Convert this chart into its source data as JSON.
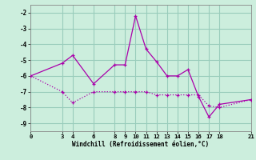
{
  "line1_x": [
    0,
    3,
    4,
    6,
    8,
    9,
    10,
    11,
    12,
    13,
    14,
    15,
    16,
    17,
    18,
    21
  ],
  "line1_y": [
    -6.0,
    -5.2,
    -4.7,
    -6.5,
    -5.3,
    -5.3,
    -2.2,
    -4.3,
    -5.1,
    -6.0,
    -6.0,
    -5.6,
    -7.3,
    -8.6,
    -7.8,
    -7.5
  ],
  "line2_x": [
    0,
    3,
    4,
    6,
    8,
    9,
    10,
    11,
    12,
    13,
    14,
    15,
    16,
    17,
    18,
    21
  ],
  "line2_y": [
    -6.0,
    -7.0,
    -7.7,
    -7.0,
    -7.0,
    -7.0,
    -7.0,
    -7.0,
    -7.2,
    -7.2,
    -7.2,
    -7.2,
    -7.2,
    -7.9,
    -8.0,
    -7.5
  ],
  "color": "#aa00aa",
  "bg_color": "#cceedd",
  "grid_color": "#99ccbb",
  "xlabel": "Windchill (Refroidissement éolien,°C)",
  "xlim": [
    0,
    21
  ],
  "ylim": [
    -9.5,
    -1.5
  ],
  "xticks": [
    0,
    3,
    4,
    6,
    8,
    9,
    10,
    11,
    12,
    13,
    14,
    15,
    16,
    17,
    18,
    21
  ],
  "yticks": [
    -9,
    -8,
    -7,
    -6,
    -5,
    -4,
    -3,
    -2
  ]
}
